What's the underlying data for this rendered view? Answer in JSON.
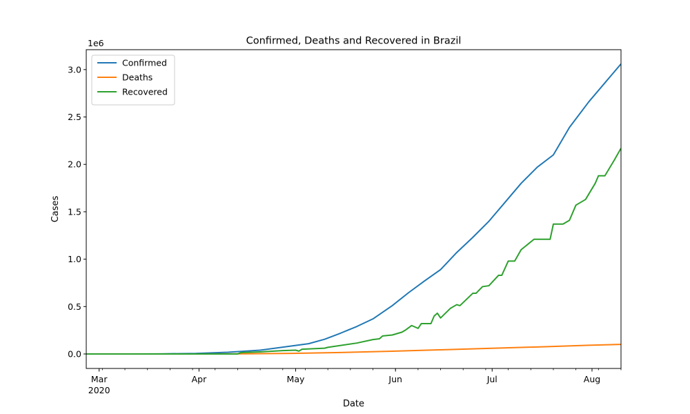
{
  "chart_data": {
    "type": "line",
    "title": "Confirmed, Deaths and Recovered in Brazil",
    "xlabel": "Date",
    "ylabel": "Cases",
    "y_offset_label": "1e6",
    "x_range": [
      "2020-02-26",
      "2020-08-10"
    ],
    "ylim": [
      -0.153,
      3.21
    ],
    "y_units": "millions (×1e6)",
    "y_ticks": [
      0.0,
      0.5,
      1.0,
      1.5,
      2.0,
      2.5,
      3.0
    ],
    "y_tick_labels": [
      "0.0",
      "0.5",
      "1.0",
      "1.5",
      "2.0",
      "2.5",
      "3.0"
    ],
    "x_ticks": [
      {
        "date": "2020-03-01",
        "label": "Mar",
        "sublabel": "2020"
      },
      {
        "date": "2020-04-01",
        "label": "Apr",
        "sublabel": ""
      },
      {
        "date": "2020-05-01",
        "label": "May",
        "sublabel": ""
      },
      {
        "date": "2020-06-01",
        "label": "Jun",
        "sublabel": ""
      },
      {
        "date": "2020-07-01",
        "label": "Jul",
        "sublabel": ""
      },
      {
        "date": "2020-08-01",
        "label": "Aug",
        "sublabel": ""
      }
    ],
    "legend_placement": "upper-left",
    "grid": false,
    "series": [
      {
        "name": "Confirmed",
        "color": "#1f77b4",
        "points": [
          [
            "2020-02-26",
            0
          ],
          [
            "2020-03-10",
            3e-05
          ],
          [
            "2020-03-20",
            0.001
          ],
          [
            "2020-03-31",
            0.0057
          ],
          [
            "2020-04-10",
            0.018
          ],
          [
            "2020-04-20",
            0.04
          ],
          [
            "2020-04-30",
            0.085
          ],
          [
            "2020-05-05",
            0.108
          ],
          [
            "2020-05-10",
            0.155
          ],
          [
            "2020-05-15",
            0.22
          ],
          [
            "2020-05-20",
            0.29
          ],
          [
            "2020-05-25",
            0.37
          ],
          [
            "2020-05-31",
            0.51
          ],
          [
            "2020-06-05",
            0.645
          ],
          [
            "2020-06-10",
            0.77
          ],
          [
            "2020-06-15",
            0.89
          ],
          [
            "2020-06-20",
            1.07
          ],
          [
            "2020-06-25",
            1.23
          ],
          [
            "2020-06-30",
            1.4
          ],
          [
            "2020-07-05",
            1.6
          ],
          [
            "2020-07-10",
            1.8
          ],
          [
            "2020-07-15",
            1.97
          ],
          [
            "2020-07-20",
            2.1
          ],
          [
            "2020-07-25",
            2.39
          ],
          [
            "2020-07-31",
            2.66
          ],
          [
            "2020-08-05",
            2.86
          ],
          [
            "2020-08-10",
            3.06
          ]
        ]
      },
      {
        "name": "Deaths",
        "color": "#ff7f0e",
        "points": [
          [
            "2020-02-26",
            0
          ],
          [
            "2020-03-20",
            1e-05
          ],
          [
            "2020-03-31",
            0.0002
          ],
          [
            "2020-04-15",
            0.0018
          ],
          [
            "2020-04-30",
            0.006
          ],
          [
            "2020-05-15",
            0.015
          ],
          [
            "2020-05-31",
            0.029
          ],
          [
            "2020-06-15",
            0.044
          ],
          [
            "2020-06-30",
            0.059
          ],
          [
            "2020-07-15",
            0.074
          ],
          [
            "2020-07-31",
            0.092
          ],
          [
            "2020-08-10",
            0.101
          ]
        ]
      },
      {
        "name": "Recovered",
        "color": "#2ca02c",
        "points": [
          [
            "2020-02-26",
            0
          ],
          [
            "2020-04-13",
            0.0
          ],
          [
            "2020-04-14",
            0.014
          ],
          [
            "2020-04-20",
            0.022
          ],
          [
            "2020-04-27",
            0.035
          ],
          [
            "2020-05-01",
            0.04
          ],
          [
            "2020-05-02",
            0.03
          ],
          [
            "2020-05-03",
            0.05
          ],
          [
            "2020-05-10",
            0.061
          ],
          [
            "2020-05-11",
            0.07
          ],
          [
            "2020-05-20",
            0.115
          ],
          [
            "2020-05-25",
            0.152
          ],
          [
            "2020-05-27",
            0.16
          ],
          [
            "2020-05-28",
            0.19
          ],
          [
            "2020-05-31",
            0.2
          ],
          [
            "2020-06-03",
            0.23
          ],
          [
            "2020-06-04",
            0.25
          ],
          [
            "2020-06-06",
            0.3
          ],
          [
            "2020-06-08",
            0.27
          ],
          [
            "2020-06-09",
            0.32
          ],
          [
            "2020-06-12",
            0.32
          ],
          [
            "2020-06-13",
            0.4
          ],
          [
            "2020-06-14",
            0.43
          ],
          [
            "2020-06-15",
            0.38
          ],
          [
            "2020-06-18",
            0.48
          ],
          [
            "2020-06-20",
            0.52
          ],
          [
            "2020-06-21",
            0.51
          ],
          [
            "2020-06-25",
            0.64
          ],
          [
            "2020-06-26",
            0.64
          ],
          [
            "2020-06-28",
            0.71
          ],
          [
            "2020-06-30",
            0.72
          ],
          [
            "2020-07-03",
            0.83
          ],
          [
            "2020-07-04",
            0.83
          ],
          [
            "2020-07-06",
            0.98
          ],
          [
            "2020-07-08",
            0.98
          ],
          [
            "2020-07-10",
            1.1
          ],
          [
            "2020-07-14",
            1.21
          ],
          [
            "2020-07-19",
            1.21
          ],
          [
            "2020-07-20",
            1.37
          ],
          [
            "2020-07-23",
            1.37
          ],
          [
            "2020-07-25",
            1.41
          ],
          [
            "2020-07-27",
            1.57
          ],
          [
            "2020-07-30",
            1.63
          ],
          [
            "2020-08-02",
            1.8
          ],
          [
            "2020-08-03",
            1.88
          ],
          [
            "2020-08-05",
            1.88
          ],
          [
            "2020-08-08",
            2.05
          ],
          [
            "2020-08-10",
            2.17
          ]
        ]
      }
    ]
  }
}
